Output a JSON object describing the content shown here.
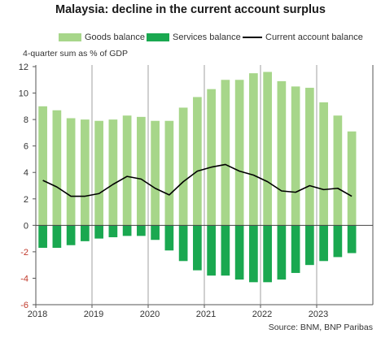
{
  "title": "Malaysia: decline in the current account surplus",
  "unit_label": "4-quarter sum as % of GDP",
  "source": "Source: BNM, BNP Paribas",
  "legend": [
    {
      "label": "Goods balance",
      "color": "#a7d68a",
      "kind": "box"
    },
    {
      "label": "Services balance",
      "color": "#1aa850",
      "kind": "box"
    },
    {
      "label": "Current account balance",
      "color": "#000000",
      "kind": "line"
    }
  ],
  "chart_data": {
    "type": "bar",
    "title": "Malaysia: decline in the current account surplus",
    "ylabel": "4-quarter sum as % of GDP",
    "ylim": [
      -6,
      12
    ],
    "yticks": [
      -6,
      -4,
      -2,
      0,
      2,
      4,
      6,
      8,
      10,
      12
    ],
    "xtick_labels": [
      "2018",
      "2019",
      "2020",
      "2021",
      "2022",
      "2023"
    ],
    "categories": [
      "2018Q1",
      "2018Q2",
      "2018Q3",
      "2018Q4",
      "2019Q1",
      "2019Q2",
      "2019Q3",
      "2019Q4",
      "2020Q1",
      "2020Q2",
      "2020Q3",
      "2020Q4",
      "2021Q1",
      "2021Q2",
      "2021Q3",
      "2021Q4",
      "2022Q1",
      "2022Q2",
      "2022Q3",
      "2022Q4",
      "2023Q1",
      "2023Q2",
      "2023Q3",
      "2023Q4"
    ],
    "stacked": true,
    "series": [
      {
        "name": "Goods balance",
        "type": "bar",
        "color": "#a7d68a",
        "values": [
          9.0,
          8.7,
          8.1,
          8.0,
          7.9,
          8.0,
          8.3,
          8.2,
          7.9,
          7.9,
          8.9,
          9.7,
          10.3,
          11.0,
          11.0,
          11.5,
          11.6,
          10.9,
          10.5,
          10.4,
          9.3,
          8.3,
          7.1,
          0
        ]
      },
      {
        "name": "Services balance",
        "type": "bar",
        "color": "#1aa850",
        "values": [
          -1.7,
          -1.7,
          -1.5,
          -1.2,
          -1.0,
          -0.9,
          -0.8,
          -0.8,
          -1.1,
          -1.9,
          -2.7,
          -3.4,
          -3.8,
          -3.8,
          -4.1,
          -4.3,
          -4.3,
          -4.1,
          -3.6,
          -3.0,
          -2.7,
          -2.4,
          -2.1,
          0
        ]
      },
      {
        "name": "Current account balance",
        "type": "line",
        "color": "#000000",
        "values": [
          3.4,
          2.9,
          2.2,
          2.2,
          2.4,
          3.1,
          3.7,
          3.5,
          2.8,
          2.3,
          3.3,
          4.1,
          4.4,
          4.6,
          4.1,
          3.8,
          3.3,
          2.6,
          2.5,
          3.0,
          2.7,
          2.8,
          2.2,
          null
        ]
      }
    ],
    "grid": false
  }
}
